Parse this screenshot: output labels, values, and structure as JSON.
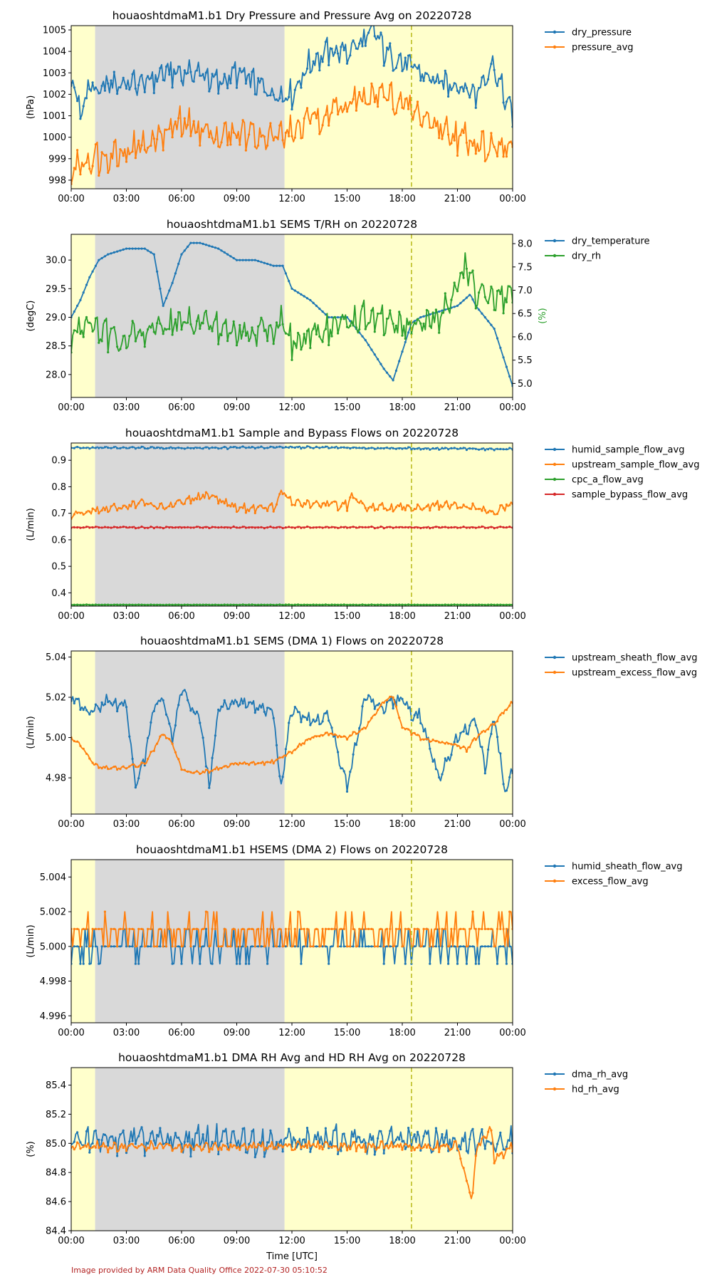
{
  "footer": "Image provided by ARM Data Quality Office 2022-07-30 05:10:52",
  "x_tick_labels": [
    "00:00",
    "03:00",
    "06:00",
    "09:00",
    "12:00",
    "15:00",
    "18:00",
    "21:00",
    "00:00"
  ],
  "x_label": "Time [UTC]",
  "colors": {
    "blue": "#1f77b4",
    "orange": "#ff7f0e",
    "green": "#2ca02c",
    "red": "#d62728",
    "yellow_band": "#ffffcc",
    "grey_band": "#d9d9d9",
    "marker_line": "#bcbd22",
    "footer": "#b22222"
  },
  "background_bands": [
    {
      "from_hour": 0,
      "to_hour": 1.3,
      "color": "yellow"
    },
    {
      "from_hour": 1.3,
      "to_hour": 11.6,
      "color": "grey"
    },
    {
      "from_hour": 11.6,
      "to_hour": 24,
      "color": "yellow"
    }
  ],
  "marker_line_hour": 18.5,
  "chart_data": [
    {
      "type": "line",
      "title": "houaoshtdmaM1.b1 Dry Pressure and Pressure Avg on 20220728",
      "ylabel": "(hPa)",
      "ylim": [
        997.6,
        1005.2
      ],
      "yticks": [
        998,
        999,
        1000,
        1001,
        1002,
        1003,
        1004,
        1005
      ],
      "ytick_labels": [
        "998",
        "999",
        "1000",
        "1001",
        "1002",
        "1003",
        "1004",
        "1005"
      ],
      "series": [
        {
          "name": "dry_pressure",
          "color": "blue",
          "x": [
            0,
            0.5,
            1,
            1.5,
            2,
            3,
            4,
            5,
            6,
            7,
            8,
            9,
            10,
            11,
            12,
            13,
            14,
            15,
            16,
            16.5,
            17,
            18,
            19,
            20,
            21,
            22,
            22.9,
            23.5,
            24
          ],
          "y": [
            1003,
            1001,
            1002.5,
            1002,
            1002.5,
            1002.5,
            1002.5,
            1003,
            1003,
            1003,
            1002.5,
            1003,
            1002.5,
            1002,
            1002,
            1003.5,
            1004,
            1004,
            1004.5,
            1005,
            1004,
            1003.5,
            1003,
            1002.5,
            1002.5,
            1002,
            1003.5,
            1002,
            1001
          ],
          "amplitude": 0.9
        },
        {
          "name": "pressure_avg",
          "color": "orange",
          "x": [
            0,
            1,
            2,
            3,
            4,
            5,
            6,
            7,
            8,
            9,
            10,
            11,
            12,
            13,
            14,
            15,
            16,
            17,
            18,
            19,
            20,
            21,
            22,
            23,
            24
          ],
          "y": [
            998.5,
            999,
            999.2,
            999.4,
            999.6,
            1000.2,
            1000.6,
            1000.4,
            1000,
            1000.2,
            1000.2,
            1000,
            1000.2,
            1000.8,
            1001.2,
            1001.5,
            1001.8,
            1002,
            1001.5,
            1001,
            1000.5,
            1000,
            999.8,
            999.5,
            999.5
          ],
          "amplitude": 1.1
        }
      ]
    },
    {
      "type": "line",
      "title": "houaoshtdmaM1.b1 SEMS T/RH on 20220728",
      "ylabel": "(degC)",
      "ylim": [
        27.6,
        30.45
      ],
      "yticks": [
        28.0,
        28.5,
        29.0,
        29.5,
        30.0
      ],
      "ytick_labels": [
        "28.0",
        "28.5",
        "29.0",
        "29.5",
        "30.0"
      ],
      "ylabel_right": "(%)",
      "ylim_right": [
        4.7,
        8.2
      ],
      "yticks_right": [
        5.0,
        5.5,
        6.0,
        6.5,
        7.0,
        7.5,
        8.0
      ],
      "ytick_labels_right": [
        "5.0",
        "5.5",
        "6.0",
        "6.5",
        "7.0",
        "7.5",
        "8.0"
      ],
      "series": [
        {
          "name": "dry_temperature",
          "color": "blue",
          "axis": "left",
          "x": [
            0,
            0.5,
            1,
            1.5,
            2,
            3,
            4,
            4.5,
            5,
            5.5,
            6,
            6.5,
            7,
            8,
            9,
            10,
            11,
            11.5,
            12,
            13,
            14,
            15,
            16,
            17,
            17.5,
            18,
            18.5,
            19,
            20,
            21,
            21.7,
            22,
            23,
            24
          ],
          "y": [
            29.0,
            29.3,
            29.7,
            30.0,
            30.1,
            30.2,
            30.2,
            30.1,
            29.2,
            29.6,
            30.1,
            30.3,
            30.3,
            30.2,
            30.0,
            30.0,
            29.9,
            29.9,
            29.5,
            29.3,
            29.0,
            29.0,
            28.6,
            28.1,
            27.9,
            28.4,
            28.9,
            29.0,
            29.1,
            29.2,
            29.4,
            29.2,
            28.8,
            27.8
          ],
          "amplitude": 0.0
        },
        {
          "name": "dry_rh",
          "color": "green",
          "axis": "right",
          "x": [
            0,
            1,
            2,
            3,
            4,
            5,
            6,
            7,
            8,
            9,
            10,
            11,
            11.6,
            12,
            13,
            14,
            15,
            16,
            17,
            18,
            19,
            20,
            21,
            21.5,
            22,
            23,
            24
          ],
          "y": [
            6.0,
            6.3,
            6.0,
            6.0,
            6.1,
            6.2,
            6.3,
            6.3,
            6.2,
            6.1,
            6.1,
            6.2,
            6.4,
            5.8,
            6.0,
            6.2,
            6.3,
            6.4,
            6.3,
            6.2,
            6.3,
            6.4,
            7.1,
            7.5,
            6.9,
            6.8,
            7.0
          ],
          "amplitude": 0.5
        }
      ]
    },
    {
      "type": "line",
      "title": "houaoshtdmaM1.b1 Sample and Bypass Flows on 20220728",
      "ylabel": "(L/min)",
      "ylim": [
        0.35,
        0.965
      ],
      "yticks": [
        0.4,
        0.5,
        0.6,
        0.7,
        0.8,
        0.9
      ],
      "ytick_labels": [
        "0.4",
        "0.5",
        "0.6",
        "0.7",
        "0.8",
        "0.9"
      ],
      "series": [
        {
          "name": "humid_sample_flow_avg",
          "color": "blue",
          "x": [
            0,
            6,
            12,
            18,
            24
          ],
          "y": [
            0.948,
            0.946,
            0.949,
            0.945,
            0.942
          ],
          "amplitude": 0.006
        },
        {
          "name": "upstream_sample_flow_avg",
          "color": "orange",
          "x": [
            0,
            2,
            4,
            5,
            7.5,
            9,
            11,
            11.5,
            12,
            15,
            15.2,
            16,
            18.5,
            20,
            22,
            23,
            24
          ],
          "y": [
            0.7,
            0.715,
            0.74,
            0.72,
            0.77,
            0.72,
            0.72,
            0.78,
            0.74,
            0.73,
            0.77,
            0.72,
            0.72,
            0.73,
            0.72,
            0.7,
            0.74
          ],
          "amplitude": 0.025
        },
        {
          "name": "cpc_a_flow_avg",
          "color": "green",
          "x": [
            0,
            24
          ],
          "y": [
            0.355,
            0.355
          ],
          "amplitude": 0.001
        },
        {
          "name": "sample_bypass_flow_avg",
          "color": "red",
          "x": [
            0,
            24
          ],
          "y": [
            0.647,
            0.647
          ],
          "amplitude": 0.004
        }
      ]
    },
    {
      "type": "line",
      "title": "houaoshtdmaM1.b1 SEMS (DMA 1) Flows on 20220728",
      "ylabel": "(L/min)",
      "ylim": [
        4.962,
        5.043
      ],
      "yticks": [
        4.98,
        5.0,
        5.02,
        5.04
      ],
      "ytick_labels": [
        "4.98",
        "5.00",
        "5.02",
        "5.04"
      ],
      "series": [
        {
          "name": "upstream_sheath_flow_avg",
          "color": "blue",
          "x": [
            0,
            1,
            2,
            3,
            3.5,
            4,
            4.5,
            5,
            5.5,
            6,
            6.5,
            7,
            7.5,
            8,
            9,
            10,
            11,
            11.4,
            12,
            13,
            14,
            15,
            16,
            17,
            18,
            18.5,
            19,
            20,
            21,
            22,
            22.5,
            23,
            23.6,
            24
          ],
          "y": [
            5.02,
            5.012,
            5.018,
            5.015,
            4.975,
            4.99,
            5.015,
            5.02,
            5.0,
            5.025,
            5.015,
            5.01,
            4.975,
            5.015,
            5.018,
            5.015,
            5.012,
            4.975,
            5.015,
            5.008,
            5.01,
            4.975,
            5.02,
            5.015,
            5.02,
            5.012,
            5.01,
            4.98,
            5.0,
            5.008,
            4.985,
            5.01,
            4.972,
            4.983
          ],
          "amplitude": 0.005
        },
        {
          "name": "upstream_excess_flow_avg",
          "color": "orange",
          "x": [
            0,
            0.5,
            1.3,
            2,
            3,
            4,
            5,
            5.5,
            6,
            7,
            8,
            9,
            10,
            11,
            12,
            13,
            14,
            15,
            16,
            17,
            17.5,
            18,
            19,
            20,
            21,
            21.5,
            22,
            23,
            24
          ],
          "y": [
            5.0,
            4.996,
            4.986,
            4.985,
            4.985,
            4.987,
            5.002,
            4.997,
            4.984,
            4.982,
            4.985,
            4.987,
            4.987,
            4.988,
            4.993,
            5.0,
            5.002,
            5.0,
            5.005,
            5.018,
            5.02,
            5.005,
            5.0,
            4.998,
            4.996,
            4.994,
            5.0,
            5.007,
            5.018
          ],
          "amplitude": 0.0015
        }
      ]
    },
    {
      "type": "line",
      "title": "houaoshtdmaM1.b1 HSEMS (DMA 2) Flows on 20220728",
      "ylabel": "(L/min)",
      "ylim": [
        4.9956,
        5.005
      ],
      "yticks": [
        4.996,
        4.998,
        5.0,
        5.002,
        5.004
      ],
      "ytick_labels": [
        "4.996",
        "4.998",
        "5.000",
        "5.002",
        "5.004"
      ],
      "series": [
        {
          "name": "humid_sheath_flow_avg",
          "color": "blue",
          "x": [
            0,
            24
          ],
          "y": [
            5.0,
            5.0
          ],
          "amplitude": 0.0012,
          "discrete": 0.001
        },
        {
          "name": "excess_flow_avg",
          "color": "orange",
          "x": [
            0,
            24
          ],
          "y": [
            5.0008,
            5.0008
          ],
          "amplitude": 0.0015,
          "discrete": 0.001
        }
      ]
    },
    {
      "type": "line",
      "title": "houaoshtdmaM1.b1 DMA RH Avg and HD RH Avg on 20220728",
      "ylabel": "(%)",
      "ylim": [
        84.4,
        85.52
      ],
      "yticks": [
        84.4,
        84.6,
        84.8,
        85.0,
        85.2,
        85.4
      ],
      "ytick_labels": [
        "84.4",
        "84.6",
        "84.8",
        "85.0",
        "85.2",
        "85.4"
      ],
      "series": [
        {
          "name": "dma_rh_avg",
          "color": "blue",
          "x": [
            0,
            24
          ],
          "y": [
            85.02,
            85.02
          ],
          "amplitude": 0.14
        },
        {
          "name": "hd_rh_avg",
          "color": "orange",
          "x": [
            0,
            21,
            21.8,
            22,
            22.8,
            23,
            24
          ],
          "y": [
            84.98,
            84.98,
            84.6,
            84.95,
            85.1,
            84.9,
            84.97
          ],
          "amplitude": 0.05
        }
      ]
    }
  ]
}
